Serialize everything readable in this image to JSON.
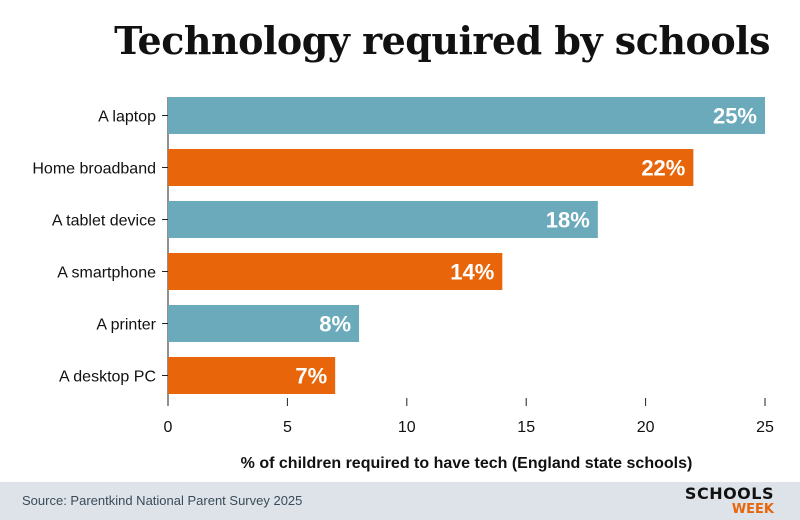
{
  "chart_data": {
    "type": "bar",
    "orientation": "horizontal",
    "title": "Technology required by schools",
    "categories": [
      "A laptop",
      "Home broadband",
      "A tablet device",
      "A smartphone",
      "A printer",
      "A desktop PC"
    ],
    "values": [
      25,
      22,
      18,
      14,
      8,
      7
    ],
    "data_labels": [
      "25%",
      "22%",
      "18%",
      "14%",
      "8%",
      "7%"
    ],
    "bar_colors": [
      "#6aaabb",
      "#e8650a",
      "#6aaabb",
      "#e8650a",
      "#6aaabb",
      "#e8650a"
    ],
    "xlabel": "% of children required to have tech (England state schools)",
    "ylabel": "",
    "xlim": [
      0,
      25
    ],
    "xticks": [
      0,
      5,
      10,
      15,
      20,
      25
    ],
    "grid": false
  },
  "footer": {
    "source": "Source: Parentkind National Parent Survey 2025",
    "logo_top": "SCHOOLS",
    "logo_bottom": "WEEK"
  },
  "colors": {
    "teal": "#6aaabb",
    "orange": "#e8650a",
    "footer_bg": "#dde3e8"
  }
}
